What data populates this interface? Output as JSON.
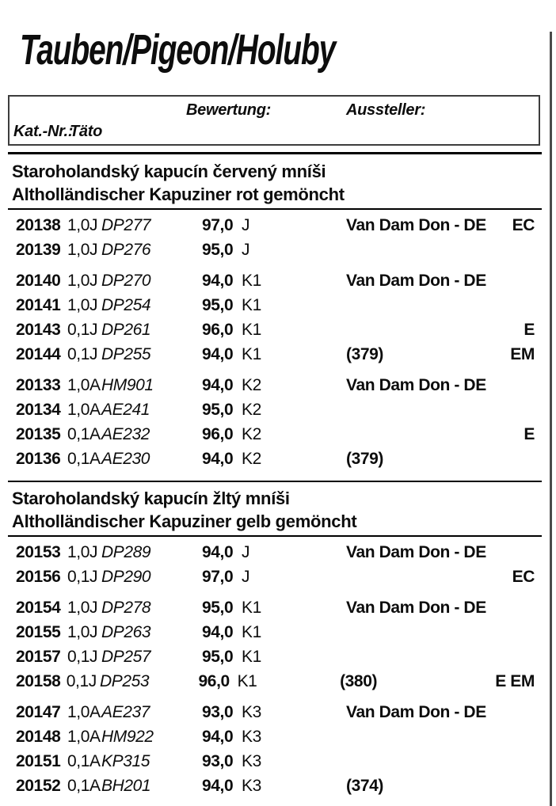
{
  "page": {
    "title": "Tauben/Pigeon/Holuby",
    "ink_color": "#0d0d0d",
    "border_color": "#4a4a4a"
  },
  "header_box": {
    "bewertung_label": "Bewertung:",
    "aussteller_label": "Aussteller:",
    "kat_nr_label": "Kat.-Nr.:",
    "taeto_label": "Täto"
  },
  "sections": [
    {
      "title_line1": "Staroholandský kapucín červený mníši",
      "title_line2": "Altholländischer Kapuziner rot gemöncht",
      "groups": [
        {
          "rows": [
            {
              "kat": "20138",
              "sex": "1,0J",
              "ring": "DP277",
              "score": "97,0",
              "class": "J",
              "exhibitor": "Van Dam Don - DE",
              "note": "",
              "award": "EC"
            },
            {
              "kat": "20139",
              "sex": "1,0J",
              "ring": "DP276",
              "score": "95,0",
              "class": "J",
              "exhibitor": "",
              "note": "",
              "award": ""
            }
          ]
        },
        {
          "rows": [
            {
              "kat": "20140",
              "sex": "1,0J",
              "ring": "DP270",
              "score": "94,0",
              "class": "K1",
              "exhibitor": "Van Dam Don - DE",
              "note": "",
              "award": ""
            },
            {
              "kat": "20141",
              "sex": "1,0J",
              "ring": "DP254",
              "score": "95,0",
              "class": "K1",
              "exhibitor": "",
              "note": "",
              "award": ""
            },
            {
              "kat": "20143",
              "sex": "0,1J",
              "ring": "DP261",
              "score": "96,0",
              "class": "K1",
              "exhibitor": "",
              "note": "",
              "award": "E"
            },
            {
              "kat": "20144",
              "sex": "0,1J",
              "ring": "DP255",
              "score": "94,0",
              "class": "K1",
              "exhibitor": "",
              "note": "(379)",
              "award": "EM"
            }
          ]
        },
        {
          "rows": [
            {
              "kat": "20133",
              "sex": "1,0A",
              "ring": "HM901",
              "score": "94,0",
              "class": "K2",
              "exhibitor": "Van Dam Don - DE",
              "note": "",
              "award": ""
            },
            {
              "kat": "20134",
              "sex": "1,0A",
              "ring": "AE241",
              "score": "95,0",
              "class": "K2",
              "exhibitor": "",
              "note": "",
              "award": ""
            },
            {
              "kat": "20135",
              "sex": "0,1A",
              "ring": "AE232",
              "score": "96,0",
              "class": "K2",
              "exhibitor": "",
              "note": "",
              "award": "E"
            },
            {
              "kat": "20136",
              "sex": "0,1A",
              "ring": "AE230",
              "score": "94,0",
              "class": "K2",
              "exhibitor": "",
              "note": "(379)",
              "award": ""
            }
          ]
        }
      ]
    },
    {
      "title_line1": "Staroholandský kapucín žltý mníši",
      "title_line2": "Altholländischer Kapuziner gelb gemöncht",
      "groups": [
        {
          "rows": [
            {
              "kat": "20153",
              "sex": "1,0J",
              "ring": "DP289",
              "score": "94,0",
              "class": "J",
              "exhibitor": "Van Dam Don - DE",
              "note": "",
              "award": ""
            },
            {
              "kat": "20156",
              "sex": "0,1J",
              "ring": "DP290",
              "score": "97,0",
              "class": "J",
              "exhibitor": "",
              "note": "",
              "award": "EC"
            }
          ]
        },
        {
          "rows": [
            {
              "kat": "20154",
              "sex": "1,0J",
              "ring": "DP278",
              "score": "95,0",
              "class": "K1",
              "exhibitor": "Van Dam Don - DE",
              "note": "",
              "award": ""
            },
            {
              "kat": "20155",
              "sex": "1,0J",
              "ring": "DP263",
              "score": "94,0",
              "class": "K1",
              "exhibitor": "",
              "note": "",
              "award": ""
            },
            {
              "kat": "20157",
              "sex": "0,1J",
              "ring": "DP257",
              "score": "95,0",
              "class": "K1",
              "exhibitor": "",
              "note": "",
              "award": ""
            },
            {
              "kat": "20158",
              "sex": "0,1J",
              "ring": "DP253",
              "score": "96,0",
              "class": "K1",
              "exhibitor": "",
              "note": "(380)",
              "award": "E EM"
            }
          ]
        },
        {
          "rows": [
            {
              "kat": "20147",
              "sex": "1,0A",
              "ring": "AE237",
              "score": "93,0",
              "class": "K3",
              "exhibitor": "Van Dam Don - DE",
              "note": "",
              "award": ""
            },
            {
              "kat": "20148",
              "sex": "1,0A",
              "ring": "HM922",
              "score": "94,0",
              "class": "K3",
              "exhibitor": "",
              "note": "",
              "award": ""
            },
            {
              "kat": "20151",
              "sex": "0,1A",
              "ring": "KP315",
              "score": "93,0",
              "class": "K3",
              "exhibitor": "",
              "note": "",
              "award": ""
            },
            {
              "kat": "20152",
              "sex": "0,1A",
              "ring": "BH201",
              "score": "94,0",
              "class": "K3",
              "exhibitor": "",
              "note": "(374)",
              "award": ""
            }
          ]
        }
      ]
    }
  ]
}
